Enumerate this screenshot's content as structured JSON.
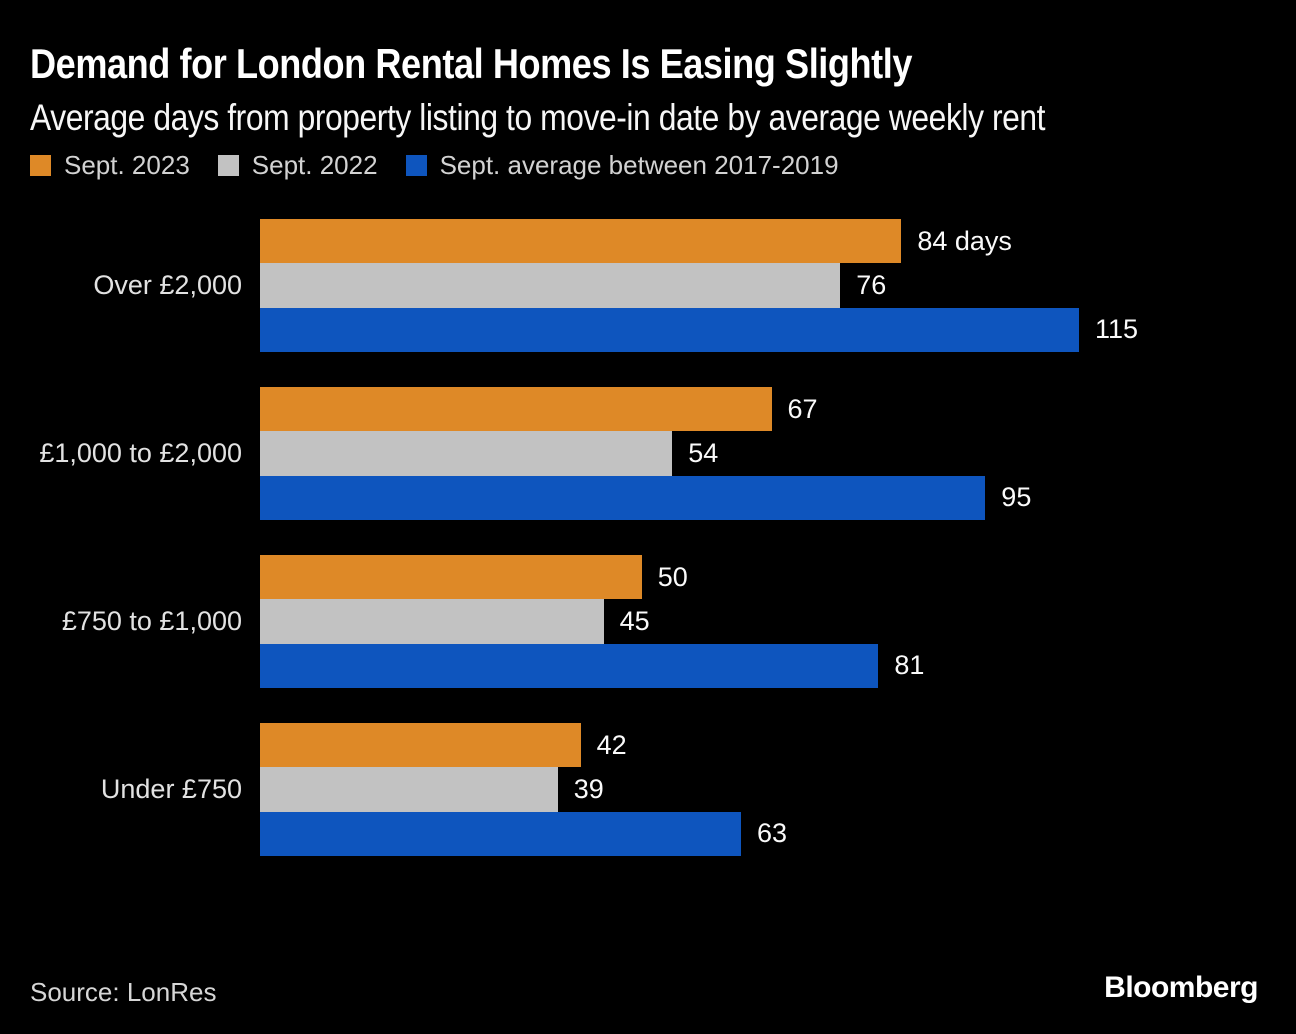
{
  "header": {
    "title": "Demand for London Rental Homes Is Easing Slightly",
    "subtitle": "Average days from property listing to move-in date by average weekly rent"
  },
  "legend": [
    {
      "label": "Sept. 2023",
      "color": "#DE8927"
    },
    {
      "label": "Sept. 2022",
      "color": "#C2C2C2"
    },
    {
      "label": "Sept. average between 2017-2019",
      "color": "#0E55BE"
    }
  ],
  "chart_data": {
    "type": "bar",
    "orientation": "horizontal",
    "title": "Demand for London Rental Homes Is Easing Slightly",
    "subtitle": "Average days from property listing to move-in date by average weekly rent",
    "unit": "days",
    "xlabel": "",
    "ylabel": "",
    "xmax": 115,
    "grid": false,
    "legend_position": "top",
    "categories": [
      "Over £2,000",
      "£1,000 to £2,000",
      "£750 to £1,000",
      "Under £750"
    ],
    "series": [
      {
        "key": "sept-2023",
        "name": "Sept. 2023",
        "color": "#DE8927",
        "values": [
          84,
          67,
          50,
          42
        ]
      },
      {
        "key": "sept-2022",
        "name": "Sept. 2022",
        "color": "#C2C2C2",
        "values": [
          76,
          54,
          45,
          39
        ]
      },
      {
        "key": "sept-avg-2017-2019",
        "name": "Sept. average between 2017-2019",
        "color": "#0E55BE",
        "values": [
          115,
          95,
          81,
          63
        ]
      }
    ],
    "value_labels": [
      [
        "84 days",
        "76",
        "115"
      ],
      [
        "67",
        "54",
        "95"
      ],
      [
        "50",
        "45",
        "81"
      ],
      [
        "42",
        "39",
        "63"
      ]
    ]
  },
  "footer": {
    "source": "Source: LonRes",
    "brand": "Bloomberg"
  },
  "style": {
    "background": "#000000"
  }
}
